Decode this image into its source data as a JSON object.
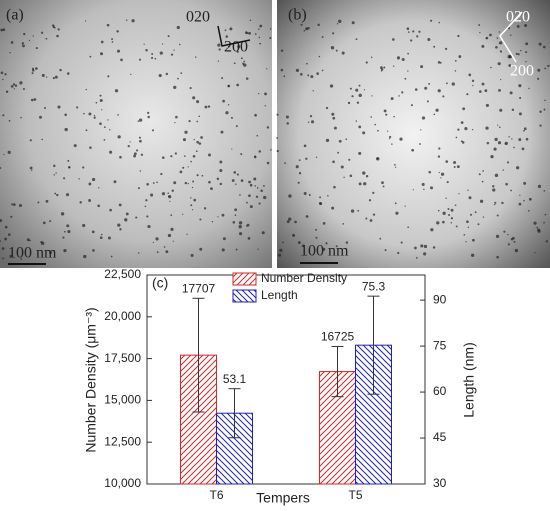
{
  "images": [
    {
      "label": "(a)",
      "directions": [
        "020",
        "200"
      ],
      "scale_bar": "100 nm"
    },
    {
      "label": "(b)",
      "directions": [
        "020",
        "200"
      ],
      "scale_bar": "100 nm"
    }
  ],
  "chart_data": {
    "type": "bar",
    "title": "(c)",
    "categories": [
      "T6",
      "T5"
    ],
    "xlabel": "Tempers",
    "ylabel": "Number Density (μm⁻³)",
    "y2label": "Length (nm)",
    "series": [
      {
        "name": "Number Density",
        "color": "#d62728",
        "hatch": "forward",
        "values": [
          17707,
          16725
        ],
        "errors": [
          3400,
          1500
        ]
      },
      {
        "name": "Length",
        "color": "#1f1fbf",
        "hatch": "back",
        "axis": "y2",
        "values": [
          53.1,
          75.3
        ],
        "errors": [
          8,
          16
        ]
      }
    ],
    "ylim": [
      10000,
      22500
    ],
    "yticks": [
      {
        "value": 10000,
        "label": "10,000"
      },
      {
        "value": 12500,
        "label": "12,500"
      },
      {
        "value": 15000,
        "label": "15,000"
      },
      {
        "value": 17500,
        "label": "17,500"
      },
      {
        "value": 20000,
        "label": "20,000"
      },
      {
        "value": 22500,
        "label": "22,500"
      }
    ],
    "y2lim": [
      30,
      98.2
    ],
    "y2ticks": [
      30,
      45,
      60,
      75,
      90
    ],
    "legend": "top-left",
    "grid": false
  }
}
